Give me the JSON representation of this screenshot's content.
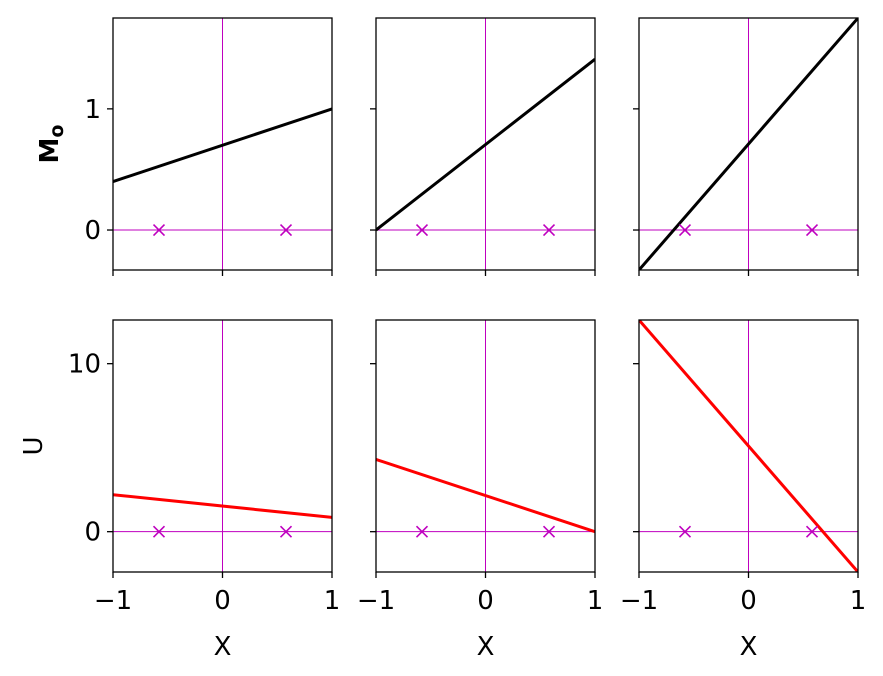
{
  "chart_data": [
    {
      "type": "line",
      "panel": "top-1",
      "xlim": [
        -1,
        1
      ],
      "ylim": [
        -0.33,
        1.75
      ],
      "xticks": [
        -1,
        0,
        1
      ],
      "yticks": [
        0,
        1
      ],
      "ylabel": "Mo",
      "ylabel_main": "M",
      "ylabel_sub": "o",
      "xlabel": "",
      "series": [
        {
          "x": [
            -1,
            1
          ],
          "y": [
            0.4,
            1.0
          ]
        }
      ],
      "markers": {
        "x": [
          -0.58,
          0.58
        ],
        "y": [
          0,
          0
        ]
      }
    },
    {
      "type": "line",
      "panel": "top-2",
      "xlim": [
        -1,
        1
      ],
      "ylim": [
        -0.33,
        1.75
      ],
      "xticks": [
        -1,
        0,
        1
      ],
      "yticks": [
        0,
        1
      ],
      "ylabel": "",
      "xlabel": "",
      "series": [
        {
          "x": [
            -1,
            1
          ],
          "y": [
            0.0,
            1.41
          ]
        }
      ],
      "markers": {
        "x": [
          -0.58,
          0.58
        ],
        "y": [
          0,
          0
        ]
      }
    },
    {
      "type": "line",
      "panel": "top-3",
      "xlim": [
        -1,
        1
      ],
      "ylim": [
        -0.33,
        1.75
      ],
      "xticks": [
        -1,
        0,
        1
      ],
      "yticks": [
        0,
        1
      ],
      "ylabel": "",
      "xlabel": "",
      "series": [
        {
          "x": [
            -1,
            1
          ],
          "y": [
            -0.33,
            1.75
          ]
        }
      ],
      "markers": {
        "x": [
          -0.58,
          0.58
        ],
        "y": [
          0,
          0
        ]
      }
    },
    {
      "type": "line",
      "panel": "bottom-1",
      "xlim": [
        -1,
        1
      ],
      "ylim": [
        -2.4,
        12.6
      ],
      "xticks": [
        -1,
        0,
        1
      ],
      "yticks": [
        0,
        10
      ],
      "ylabel": "U",
      "xlabel": "X",
      "series": [
        {
          "x": [
            -1,
            1
          ],
          "y": [
            2.2,
            0.85
          ]
        }
      ],
      "markers": {
        "x": [
          -0.58,
          0.58
        ],
        "y": [
          0,
          0
        ]
      }
    },
    {
      "type": "line",
      "panel": "bottom-2",
      "xlim": [
        -1,
        1
      ],
      "ylim": [
        -2.4,
        12.6
      ],
      "xticks": [
        -1,
        0,
        1
      ],
      "yticks": [
        0,
        10
      ],
      "ylabel": "",
      "xlabel": "X",
      "series": [
        {
          "x": [
            -1,
            1
          ],
          "y": [
            4.3,
            0.0
          ]
        }
      ],
      "markers": {
        "x": [
          -0.58,
          0.58
        ],
        "y": [
          0,
          0
        ]
      }
    },
    {
      "type": "line",
      "panel": "bottom-3",
      "xlim": [
        -1,
        1
      ],
      "ylim": [
        -2.4,
        12.6
      ],
      "xticks": [
        -1,
        0,
        1
      ],
      "yticks": [
        0,
        10
      ],
      "ylabel": "",
      "xlabel": "X",
      "series": [
        {
          "x": [
            -1,
            1
          ],
          "y": [
            12.6,
            -2.4
          ]
        }
      ],
      "markers": {
        "x": [
          -0.58,
          0.58
        ],
        "y": [
          0,
          0
        ]
      }
    }
  ],
  "colors": {
    "top_line": "#000000",
    "bottom_line": "#ff0000",
    "reference_lines": "#bf00bf",
    "markers": "#bf00bf"
  }
}
